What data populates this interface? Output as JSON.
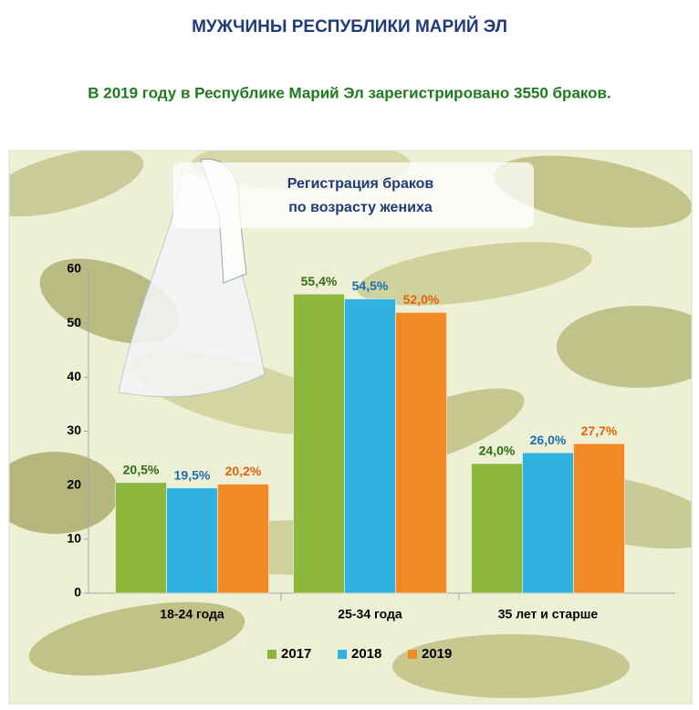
{
  "page_title": "МУЖЧИНЫ РЕСПУБЛИКИ МАРИЙ ЭЛ",
  "page_subtitle": "В 2019 году в Республике Марий Эл зарегистрировано 3550 браков.",
  "chart_data": {
    "type": "bar",
    "title": [
      "Регистрация браков",
      "по возрасту жениха"
    ],
    "categories": [
      "18-24 года",
      "25-34 года",
      "35 лет и старше"
    ],
    "series": [
      {
        "name": "2017",
        "color": "#8cb63c",
        "label_color": "#2f6e12",
        "values": [
          20.5,
          55.4,
          24.0
        ],
        "value_labels": [
          "20,5%",
          "55,4%",
          "24,0%"
        ]
      },
      {
        "name": "2018",
        "color": "#2fb2de",
        "label_color": "#1d6fae",
        "values": [
          19.5,
          54.5,
          26.0
        ],
        "value_labels": [
          "19,5%",
          "54,5%",
          "26,0%"
        ]
      },
      {
        "name": "2019",
        "color": "#f28a26",
        "label_color": "#e2620c",
        "values": [
          20.2,
          52.0,
          27.7
        ],
        "value_labels": [
          "20,2%",
          "52,0%",
          "27,7%"
        ]
      }
    ],
    "ylim": [
      0,
      60
    ],
    "yticks": [
      0,
      10,
      20,
      30,
      40,
      50,
      60
    ],
    "legend": "bottom"
  }
}
